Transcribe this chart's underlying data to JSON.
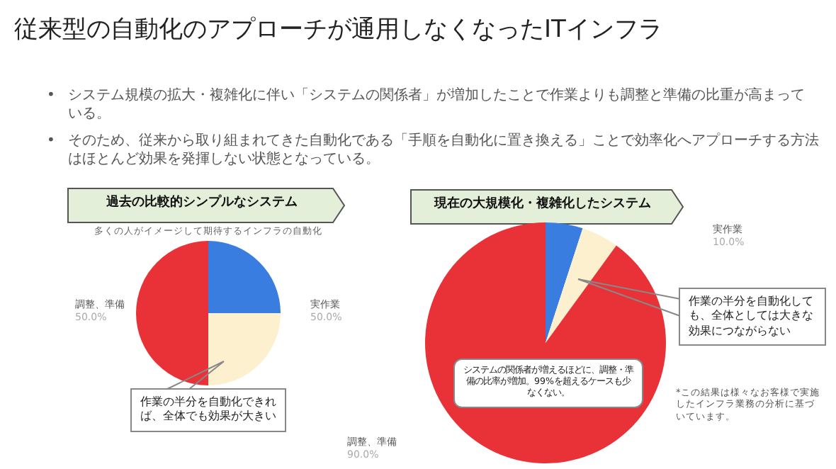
{
  "chart_data": [
    {
      "type": "pie",
      "title": "過去の比較的シンプルなシステム",
      "subtitle": "多くの人がイメージして期待するインフラの自動化",
      "categories": [
        null,
        null,
        null
      ],
      "values": [
        25,
        25,
        50
      ],
      "colors": [
        "#3a7de0",
        "#fdf0cf",
        "#e83238"
      ],
      "annotations": [
        "従来型の自動化のアプローチが通用しなくなったITインフラ",
        "•",
        "システム規模の拡大・複雑化に伴い「システムの関係者」が増加したことで作業よりも調整と準備の比重が高まっている。",
        "•",
        "そのため、従来から取り組まれてきた自動化である「手順を自動化に置き換える」ことで効率化へアプローチする方法はほとんど効果を発揮しない状態となっている。",
        "調整、準備",
        "50.0%",
        "実作業",
        "50.0%",
        "作業の半分を自動化できれば、全体でも効果が大きい"
      ]
    },
    {
      "type": "pie",
      "title": "現在の大規模化・複雑化したシステム",
      "categories": [
        null,
        null,
        null
      ],
      "values": [
        5,
        5,
        90
      ],
      "colors": [
        "#3a7de0",
        "#fdf0cf",
        "#e83238"
      ],
      "annotations": [
        "実作業",
        "10.0%",
        "調整、準備",
        "90.0%",
        "作業の半分を自動化しても、全体としては大きな効果につながらない",
        "システムの関係者が増えるほどに、調整・準備の比率が増加。99%を超えるケースも少なくない。",
        "*この結果は様々なお客様で実施したインフラ業務の分析に基づいています。"
      ]
    }
  ]
}
